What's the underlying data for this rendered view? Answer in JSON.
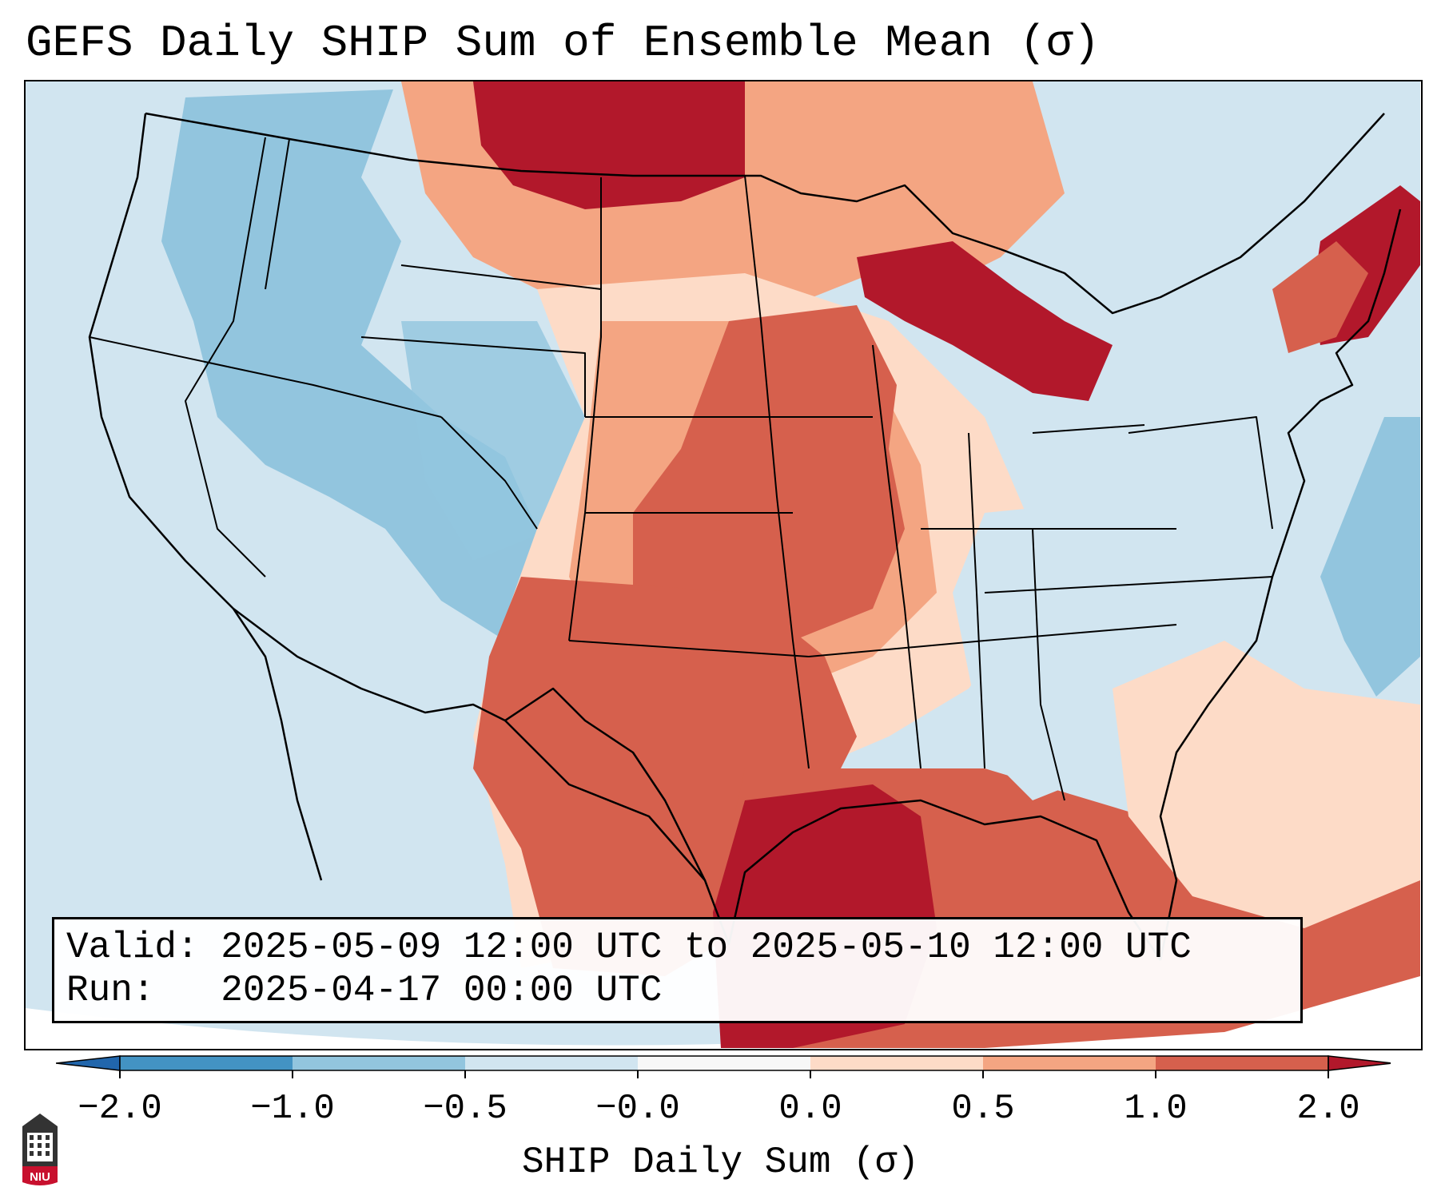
{
  "title": "GEFS Daily SHIP Sum of Ensemble Mean (σ)",
  "valid_line": "Valid: 2025-05-09 12:00 UTC to 2025-05-10 12:00 UTC",
  "run_line": "Run:   2025-04-17 00:00 UTC",
  "colorbar": {
    "label": "SHIP Daily Sum (σ)",
    "tick_labels": [
      "−2.0",
      "−1.0",
      "−0.5",
      "−0.0",
      "0.0",
      "0.5",
      "1.0",
      "2.0"
    ],
    "bins": [
      {
        "color": "#4393c3"
      },
      {
        "color": "#92c5de"
      },
      {
        "color": "#d1e5f0"
      },
      {
        "color": "#f7f7f7"
      },
      {
        "color": "#fddbc7"
      },
      {
        "color": "#f4a582"
      },
      {
        "color": "#d6604d"
      }
    ],
    "under_color": "#2166ac",
    "over_color": "#b2182b",
    "extend": "both"
  },
  "map": {
    "region": "Contiguous United States",
    "ocean_color": "#d1e5f0",
    "outside_color": "#ffffff",
    "border_color": "#000000"
  },
  "logo": {
    "text": "NIU",
    "color": "#c8102e"
  }
}
